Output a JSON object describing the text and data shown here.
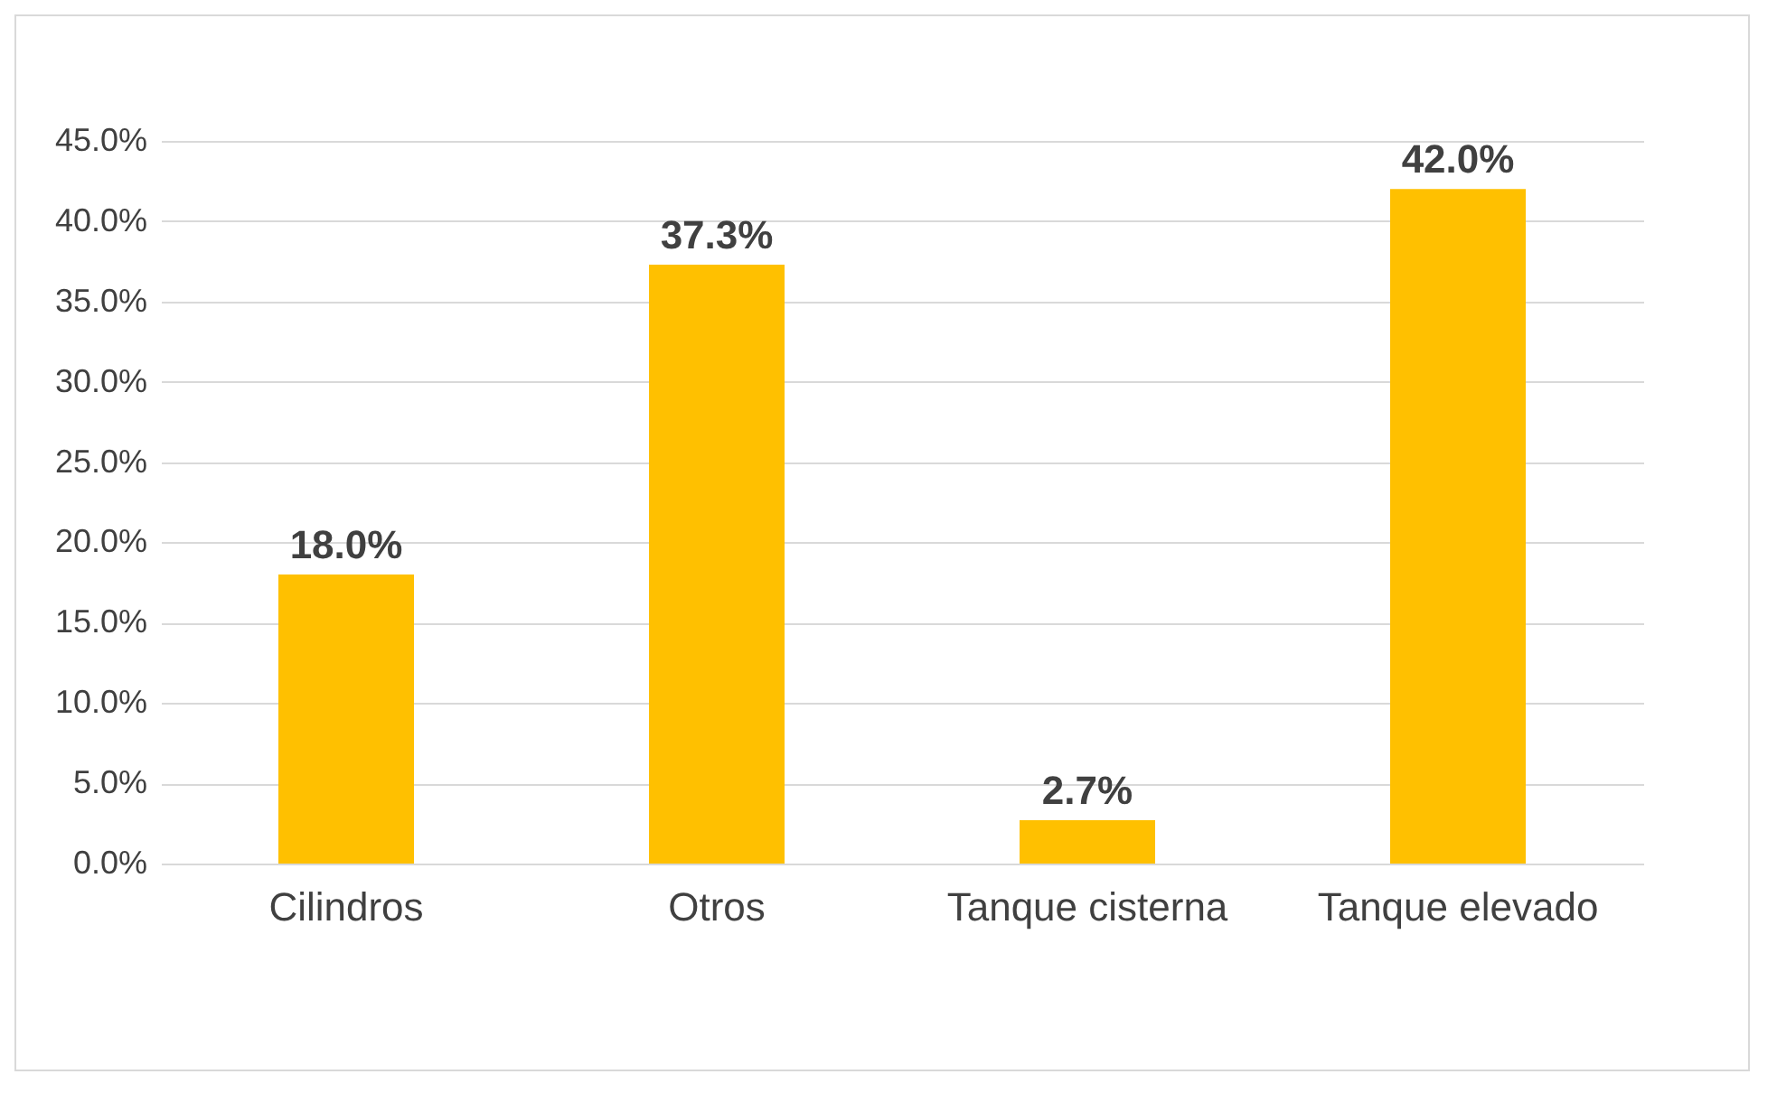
{
  "chart_data": {
    "type": "bar",
    "categories": [
      "Cilindros",
      "Otros",
      "Tanque cisterna",
      "Tanque elevado"
    ],
    "values": [
      18.0,
      37.3,
      2.7,
      42.0
    ],
    "value_labels": [
      "18.0%",
      "37.3%",
      "2.7%",
      "42.0%"
    ],
    "color": "#ffc000",
    "ylim": [
      0,
      45
    ],
    "yticks": [
      {
        "value": 0,
        "label": "0.0%"
      },
      {
        "value": 5,
        "label": "5.0%"
      },
      {
        "value": 10,
        "label": "10.0%"
      },
      {
        "value": 15,
        "label": "15.0%"
      },
      {
        "value": 20,
        "label": "20.0%"
      },
      {
        "value": 25,
        "label": "25.0%"
      },
      {
        "value": 30,
        "label": "30.0%"
      },
      {
        "value": 35,
        "label": "35.0%"
      },
      {
        "value": 40,
        "label": "40.0%"
      },
      {
        "value": 45,
        "label": "45.0%"
      }
    ],
    "grid": "y"
  }
}
